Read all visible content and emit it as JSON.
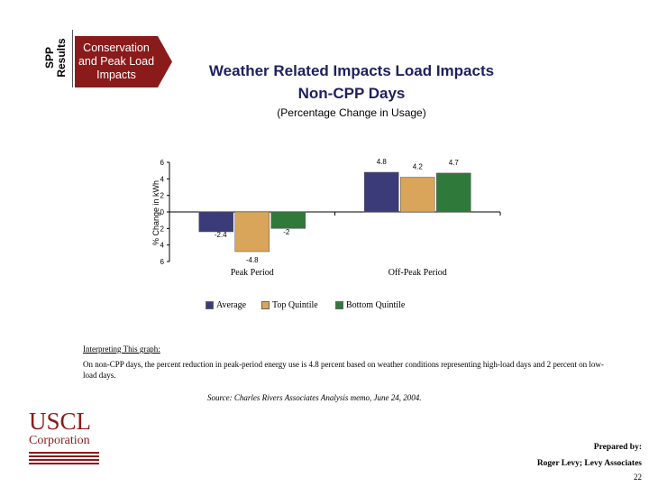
{
  "section": {
    "label_line1": "SPP",
    "label_line2": "Results"
  },
  "banner": {
    "line1": "Conservation",
    "line2": "and Peak Load",
    "line3": "Impacts",
    "color": "#8b1a1a"
  },
  "title": {
    "line1": "Weather Related Impacts Load Impacts",
    "line2": "Non-CPP Days"
  },
  "subtitle": "(Percentage Change in Usage)",
  "chart_data": {
    "type": "bar",
    "title": "Weather Related Impacts Load Impacts Non-CPP Days",
    "subtitle": "(Percentage Change in Usage)",
    "ylabel": "% Change in kWh",
    "xlabel": "",
    "ylim": [
      -6,
      6
    ],
    "yticks": [
      6,
      4,
      2,
      0,
      -2,
      -4,
      -6
    ],
    "ytick_labels": [
      "6",
      "4",
      "2",
      "0",
      "2",
      "4",
      "6"
    ],
    "categories": [
      "Peak Period",
      "Off-Peak Period"
    ],
    "series": [
      {
        "name": "Average",
        "color": "#3c3b7a",
        "values": [
          -2.4,
          4.8
        ],
        "labels": [
          "-2.4",
          "4.8"
        ]
      },
      {
        "name": "Top Quintile",
        "color": "#d9a55a",
        "values": [
          -4.8,
          4.2
        ],
        "labels": [
          "-4.8",
          "4.2"
        ]
      },
      {
        "name": "Bottom Quintile",
        "color": "#2f7a3a",
        "values": [
          -2,
          4.7
        ],
        "labels": [
          "-2",
          "4.7"
        ]
      }
    ]
  },
  "interpretation": {
    "heading": "Interpreting This graph:",
    "text": "On non-CPP days, the percent reduction in peak-period energy use is 4.8 percent based on weather conditions representing high-load days and 2 percent on low-load days."
  },
  "source": "Source:   Charles Rivers Associates Analysis memo, June 24, 2004.",
  "logo": {
    "name": "USCL",
    "corp": "Corporation"
  },
  "prepared": {
    "line1": "Prepared by:",
    "line2": "Roger Levy; Levy Associates"
  },
  "page_number": "22"
}
